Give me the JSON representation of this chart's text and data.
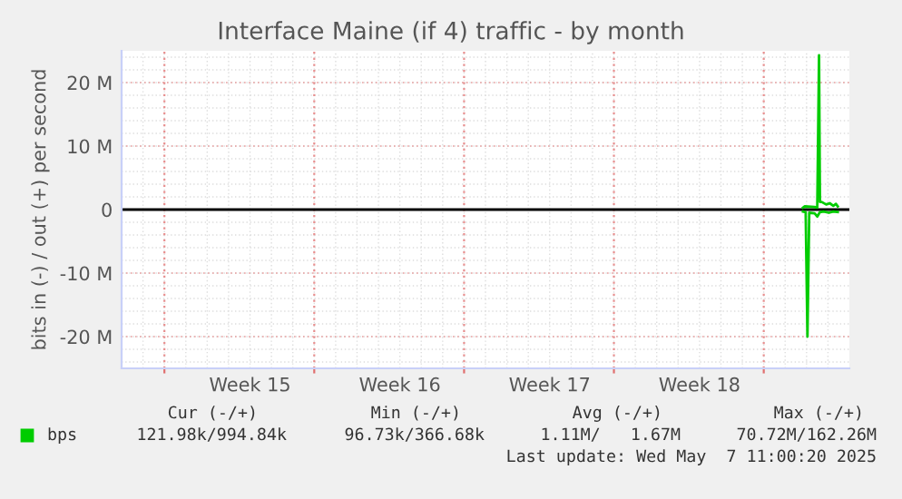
{
  "chart_data": {
    "type": "line",
    "title": "Interface Maine (if 4) traffic - by month",
    "ylabel": "bits in (-) / out (+) per second",
    "xlim": [
      "2025-04-04T00:00",
      "2025-05-08T00:00"
    ],
    "xticks": [
      {
        "value": "2025-04-06T00:00",
        "label": null
      },
      {
        "value": "2025-04-10T00:00",
        "label": "Week 15"
      },
      {
        "value": "2025-04-13T00:00",
        "label": null
      },
      {
        "value": "2025-04-17T00:00",
        "label": "Week 16"
      },
      {
        "value": "2025-04-20T00:00",
        "label": null
      },
      {
        "value": "2025-04-24T00:00",
        "label": "Week 17"
      },
      {
        "value": "2025-04-27T00:00",
        "label": null
      },
      {
        "value": "2025-05-01T00:00",
        "label": "Week 18"
      },
      {
        "value": "2025-05-04T00:00",
        "label": null
      }
    ],
    "ylim": [
      -25,
      25
    ],
    "yticks": [
      {
        "value": -20,
        "label": "-20 M"
      },
      {
        "value": -10,
        "label": "-10 M"
      },
      0,
      {
        "value": 10,
        "label": "10 M"
      },
      {
        "value": 20,
        "label": "20 M"
      }
    ],
    "series": [
      {
        "name": "bps",
        "color": "#00cc00",
        "x": [
          "2025-05-05T20:00",
          "2025-05-05T22:00",
          "2025-05-06T09:00",
          "2025-05-06T12:00",
          "2025-05-06T14:00",
          "2025-05-06T15:00",
          "2025-05-06T17:00",
          "2025-05-06T22:00",
          "2025-05-07T02:00",
          "2025-05-07T06:00",
          "2025-05-07T09:00",
          "2025-05-07T11:00"
        ],
        "values": [
          0.3,
          0.5,
          0.4,
          0.3,
          24.3,
          1.2,
          1.2,
          0.8,
          1.0,
          0.6,
          0.9,
          0.5
        ]
      },
      {
        "color": "#00cc00",
        "x": [
          "2025-05-05T20:00",
          "2025-05-05T23:00",
          "2025-05-06T01:00",
          "2025-05-06T03:00",
          "2025-05-06T09:00",
          "2025-05-06T12:00",
          "2025-05-06T15:00",
          "2025-05-06T19:00",
          "2025-05-07T01:00",
          "2025-05-07T06:00",
          "2025-05-07T11:00"
        ],
        "values": [
          -0.3,
          -0.4,
          -20,
          -0.5,
          -0.6,
          -1.1,
          -0.4,
          -0.3,
          -0.5,
          -0.3,
          -0.4
        ]
      }
    ],
    "ref_lines": [
      {
        "axis": "y",
        "value": 0,
        "color": "#000000"
      }
    ],
    "grid": true,
    "legend": "bottom left",
    "annotations": [
      "Cur (-/+)",
      "Min (-/+)",
      "Avg (-/+)",
      "Max (-/+)",
      "121.98k/994.84k",
      "96.73k/366.68k",
      "1.11M/   1.67M",
      "70.72M/162.26M",
      "Last update: Wed May  7 11:00:20 2025"
    ]
  }
}
